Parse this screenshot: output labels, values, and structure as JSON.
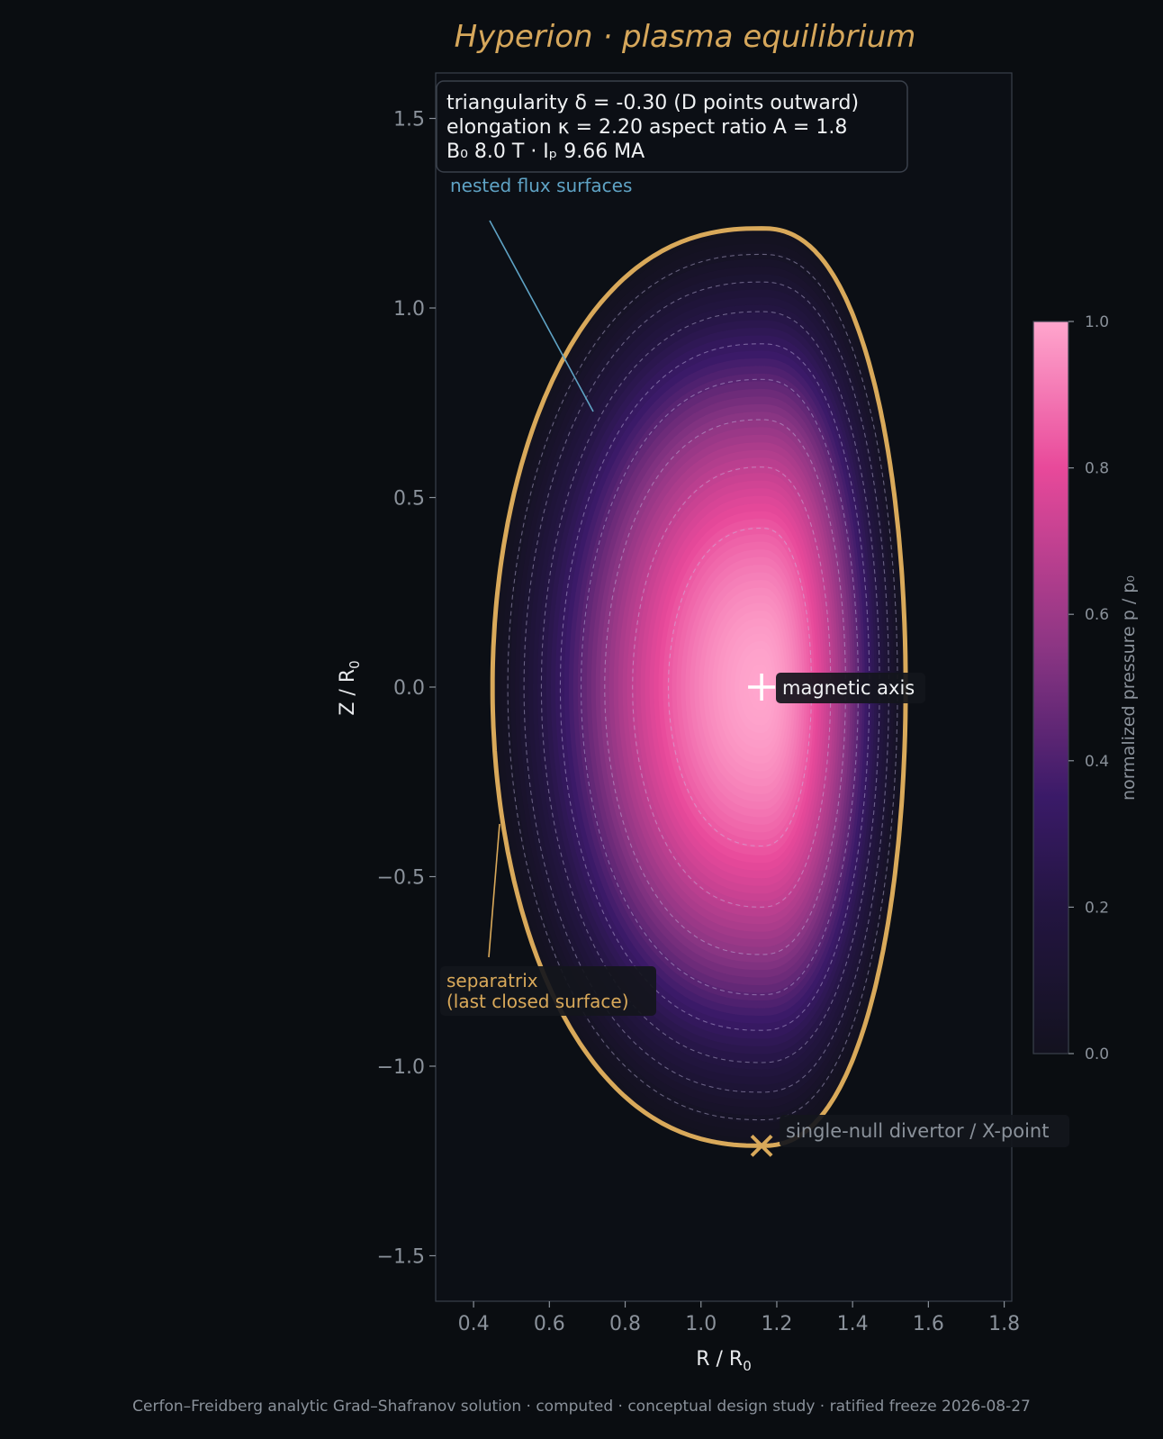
{
  "chart_data": {
    "type": "heatmap",
    "title": "Hyperion  ·  plasma equilibrium",
    "xlabel": "R / R",
    "xlabel_sub": "0",
    "ylabel": "Z / R",
    "ylabel_sub": "0",
    "xlim": [
      0.3,
      1.82
    ],
    "ylim": [
      -1.62,
      1.62
    ],
    "xticks": [
      0.4,
      0.6,
      0.8,
      1.0,
      1.2,
      1.4,
      1.6,
      1.8
    ],
    "yticks": [
      1.5,
      1.0,
      0.5,
      0.0,
      -0.5,
      -1.0,
      -1.5
    ],
    "xtick_labels": [
      "0.4",
      "0.6",
      "0.8",
      "1.0",
      "1.2",
      "1.4",
      "1.6",
      "1.8"
    ],
    "ytick_labels": [
      "1.5",
      "1.0",
      "0.5",
      "0.0",
      "−0.5",
      "−1.0",
      "−1.5"
    ],
    "grid": false,
    "parameters": {
      "line1": "triangularity δ = -0.30  (D points outward)",
      "line2": "elongation κ = 2.20    aspect ratio A = 1.8",
      "line3": "B₀ 8.0 T · Iₚ 9.66 MA",
      "triangularity": -0.3,
      "elongation": 2.2,
      "aspect_ratio": 1.8,
      "B0_T": 8.0,
      "Ip_MA": 9.66
    },
    "magnetic_axis": {
      "R": 1.16,
      "Z": 0.0,
      "label": "magnetic axis"
    },
    "x_point": {
      "R": 1.16,
      "Z": -1.21,
      "label": "single-null divertor / X-point"
    },
    "separatrix": {
      "label_line1": "separatrix",
      "label_line2": "(last closed surface)",
      "R_min": 0.45,
      "R_max": 1.54,
      "Z_top": 1.21,
      "Z_bottom": -1.21,
      "R_at_extremes": 1.16
    },
    "flux_surfaces": {
      "label": "nested flux surfaces",
      "levels": [
        0.11,
        0.22,
        0.33,
        0.44,
        0.55,
        0.66,
        0.77,
        0.88
      ]
    },
    "colorbar": {
      "label": "normalized pressure  p / p₀",
      "range": [
        0.0,
        1.0
      ],
      "ticks": [
        0.0,
        0.2,
        0.4,
        0.6,
        0.8,
        1.0
      ],
      "tick_labels": [
        "0.0",
        "0.2",
        "0.4",
        "0.6",
        "0.8",
        "1.0"
      ],
      "stops": [
        {
          "v": 0.0,
          "color": "#13121f"
        },
        {
          "v": 0.2,
          "color": "#231541"
        },
        {
          "v": 0.35,
          "color": "#3a1a68"
        },
        {
          "v": 0.55,
          "color": "#8a3583"
        },
        {
          "v": 0.8,
          "color": "#e8499a"
        },
        {
          "v": 1.0,
          "color": "#ffa6cd"
        }
      ]
    },
    "colors": {
      "background": "#0a0d11",
      "axes_face": "#0c0f15",
      "separatrix": "#d9a95a",
      "title": "#d6a75b",
      "flux_annotation": "#5fa3c5",
      "text_muted": "#8a919a"
    },
    "footer": "Cerfon–Freidberg analytic Grad–Shafranov solution · computed · conceptual design study · ratified freeze 2026-08-27"
  }
}
